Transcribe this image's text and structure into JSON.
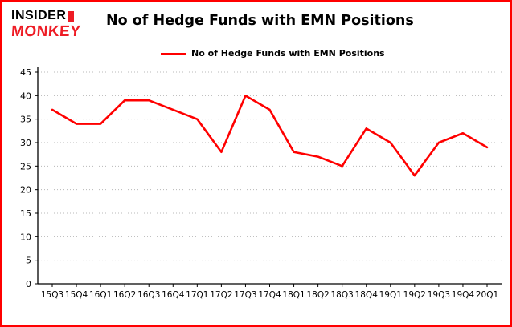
{
  "logo": {
    "line1": "INSIDER",
    "line2": "MONKEY"
  },
  "title": "No of Hedge Funds with EMN Positions",
  "legend": {
    "label": "No of Hedge Funds with EMN Positions",
    "color": "#ff0000"
  },
  "chart_data": {
    "type": "line",
    "title": "No of Hedge Funds with EMN Positions",
    "categories": [
      "15Q3",
      "15Q4",
      "16Q1",
      "16Q2",
      "16Q3",
      "16Q4",
      "17Q1",
      "17Q2",
      "17Q3",
      "17Q4",
      "18Q1",
      "18Q2",
      "18Q3",
      "18Q4",
      "19Q1",
      "19Q2",
      "19Q3",
      "19Q4",
      "20Q1"
    ],
    "values": [
      37,
      34,
      34,
      39,
      39,
      37,
      35,
      28,
      40,
      37,
      28,
      27,
      25,
      33,
      30,
      23,
      30,
      32,
      29
    ],
    "xlabel": "",
    "ylabel": "",
    "ylim": [
      0,
      45
    ],
    "yticks": [
      0,
      5,
      10,
      15,
      20,
      25,
      30,
      35,
      40,
      45
    ],
    "grid": true,
    "line_color": "#ff0000",
    "grid_color": "#b8b8b8",
    "axis_color": "#000000",
    "legend_position": "top-left"
  }
}
